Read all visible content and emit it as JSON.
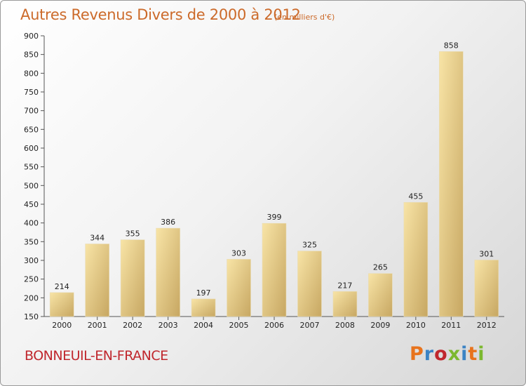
{
  "header": {
    "title": "Autres Revenus Divers de 2000 à 2012",
    "subtitle": "(en milliers d'€)"
  },
  "footer": {
    "commune": "BONNEUIL-EN-FRANCE",
    "logo_text": "Proxiti",
    "logo_colors": [
      "#e8731c",
      "#3b83c4",
      "#c0272d",
      "#7cb82f",
      "#3b83c4",
      "#e8731c",
      "#7cb82f"
    ]
  },
  "chart_data": {
    "type": "bar",
    "categories": [
      "2000",
      "2001",
      "2002",
      "2003",
      "2004",
      "2005",
      "2006",
      "2007",
      "2008",
      "2009",
      "2010",
      "2011",
      "2012"
    ],
    "values": [
      214,
      344,
      355,
      386,
      197,
      303,
      399,
      325,
      217,
      265,
      455,
      858,
      301
    ],
    "title": "Autres Revenus Divers de 2000 à 2012",
    "subtitle": "(en milliers d'€)",
    "xlabel": "",
    "ylabel": "",
    "ylim": [
      150,
      900
    ],
    "yticks": [
      150,
      200,
      250,
      300,
      350,
      400,
      450,
      500,
      550,
      600,
      650,
      700,
      750,
      800,
      850,
      900
    ],
    "grid": false,
    "legend": "none",
    "bar_color_light": "#f7e2a0",
    "bar_color_dark": "#c8a964"
  }
}
